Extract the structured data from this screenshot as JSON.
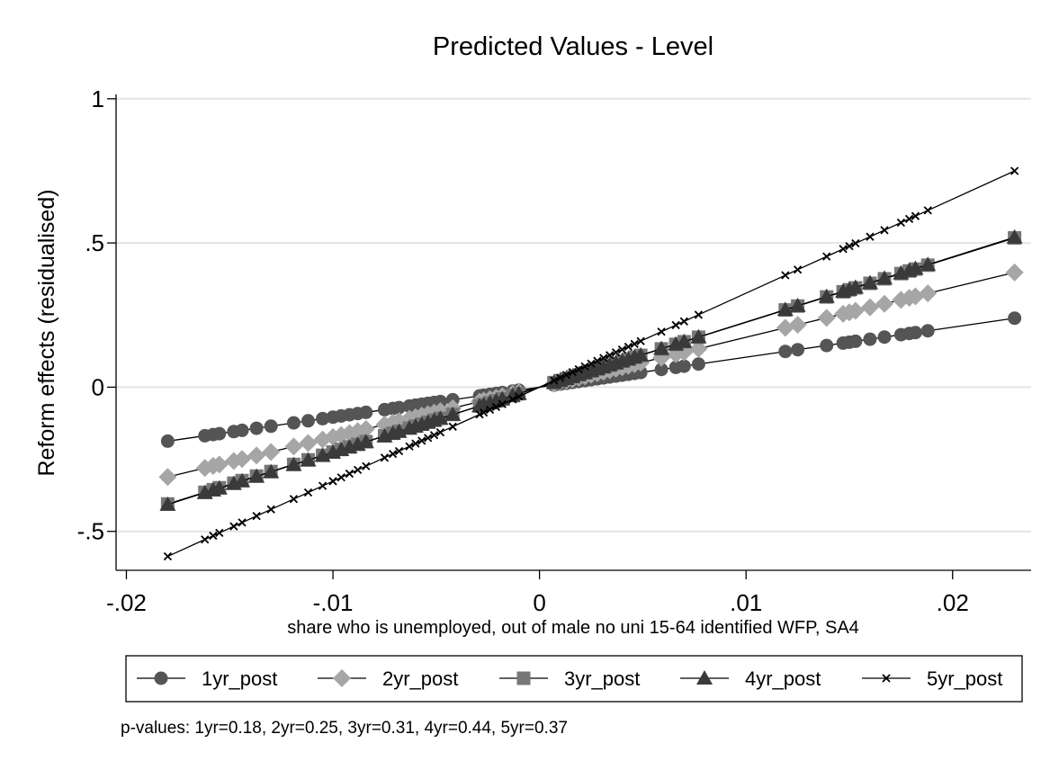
{
  "chart_data": {
    "type": "line",
    "title": "Predicted Values - Level",
    "xlabel": "share who is unemployed, out of male no uni 15-64 identified WFP, SA4",
    "ylabel": "Reform effects (residualised)",
    "note": "p-values: 1yr=0.18,  2yr=0.25,  3yr=0.31,  4yr=0.44,  5yr=0.37",
    "xlim": [
      -0.0205,
      0.0238
    ],
    "ylim": [
      -0.635,
      1.015
    ],
    "xticks": [
      -0.02,
      -0.01,
      0,
      0.01,
      0.02
    ],
    "xtick_labels": [
      "-.02",
      "-.01",
      "0",
      ".01",
      ".02"
    ],
    "yticks": [
      -0.5,
      0,
      0.5,
      1
    ],
    "ytick_labels": [
      "-.5",
      "0",
      ".5",
      "1"
    ],
    "grid": true,
    "legend_position": "bottom",
    "x": [
      -0.018,
      -0.0162,
      -0.0158,
      -0.0155,
      -0.0148,
      -0.0144,
      -0.0137,
      -0.013,
      -0.0119,
      -0.0112,
      -0.0105,
      -0.01,
      -0.0096,
      -0.0092,
      -0.0088,
      -0.0084,
      -0.0075,
      -0.0071,
      -0.0068,
      -0.0063,
      -0.006,
      -0.0057,
      -0.0054,
      -0.0051,
      -0.0048,
      -0.0042,
      -0.0029,
      -0.0027,
      -0.0024,
      -0.0021,
      -0.0018,
      -0.0013,
      -0.001,
      0.0007,
      0.001,
      0.0013,
      0.0016,
      0.0019,
      0.0022,
      0.0025,
      0.0028,
      0.0031,
      0.0034,
      0.0037,
      0.004,
      0.0043,
      0.0046,
      0.0049,
      0.0059,
      0.0066,
      0.007,
      0.0077,
      0.0119,
      0.0125,
      0.0139,
      0.0147,
      0.015,
      0.0153,
      0.016,
      0.0167,
      0.0175,
      0.0179,
      0.0182,
      0.0188,
      0.023
    ],
    "series": [
      {
        "name": "1yr_post",
        "marker": "circle",
        "color": "#555555",
        "slope": 10.4
      },
      {
        "name": "2yr_post",
        "marker": "diamond",
        "color": "#a6a6a6",
        "slope": 17.3
      },
      {
        "name": "3yr_post",
        "marker": "square",
        "color": "#777777",
        "slope": 22.5
      },
      {
        "name": "4yr_post",
        "marker": "triangle",
        "color": "#3a3a3a",
        "slope": 22.6
      },
      {
        "name": "5yr_post",
        "marker": "x",
        "color": "#000000",
        "slope": 32.6
      }
    ]
  }
}
